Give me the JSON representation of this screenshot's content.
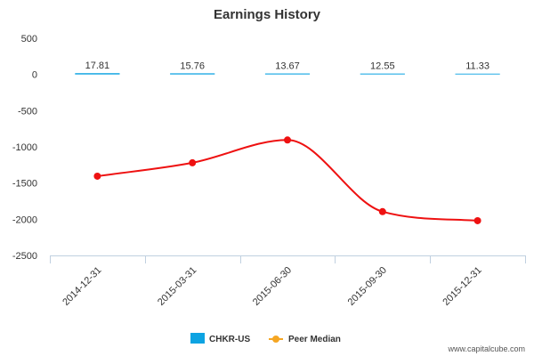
{
  "chart_data": {
    "type": "bar",
    "title": "Earnings History",
    "categories": [
      "2014-12-31",
      "2015-03-31",
      "2015-06-30",
      "2015-09-30",
      "2015-12-31"
    ],
    "ylim": [
      -2500,
      500
    ],
    "yticks": [
      500,
      0,
      -500,
      -1000,
      -1500,
      -2000,
      -2500
    ],
    "ytick_labels": [
      "500",
      "0",
      "-500",
      "-1000",
      "-1500",
      "-2000",
      "-2500"
    ],
    "series": [
      {
        "name": "CHKR-US",
        "kind": "bar",
        "color": "#0da3e2",
        "values": [
          17.81,
          15.76,
          13.67,
          12.55,
          11.33
        ],
        "labels": [
          "17.81",
          "15.76",
          "13.67",
          "12.55",
          "11.33"
        ]
      },
      {
        "name": "Peer Median",
        "kind": "line",
        "color": "#ee1111",
        "legend_color": "#f5a623",
        "values": [
          -1405,
          -1220,
          -905,
          -1895,
          -2020
        ]
      }
    ],
    "legend_position": "bottom-center",
    "xlabel": "",
    "ylabel": ""
  },
  "credit": "www.capitalcube.com"
}
